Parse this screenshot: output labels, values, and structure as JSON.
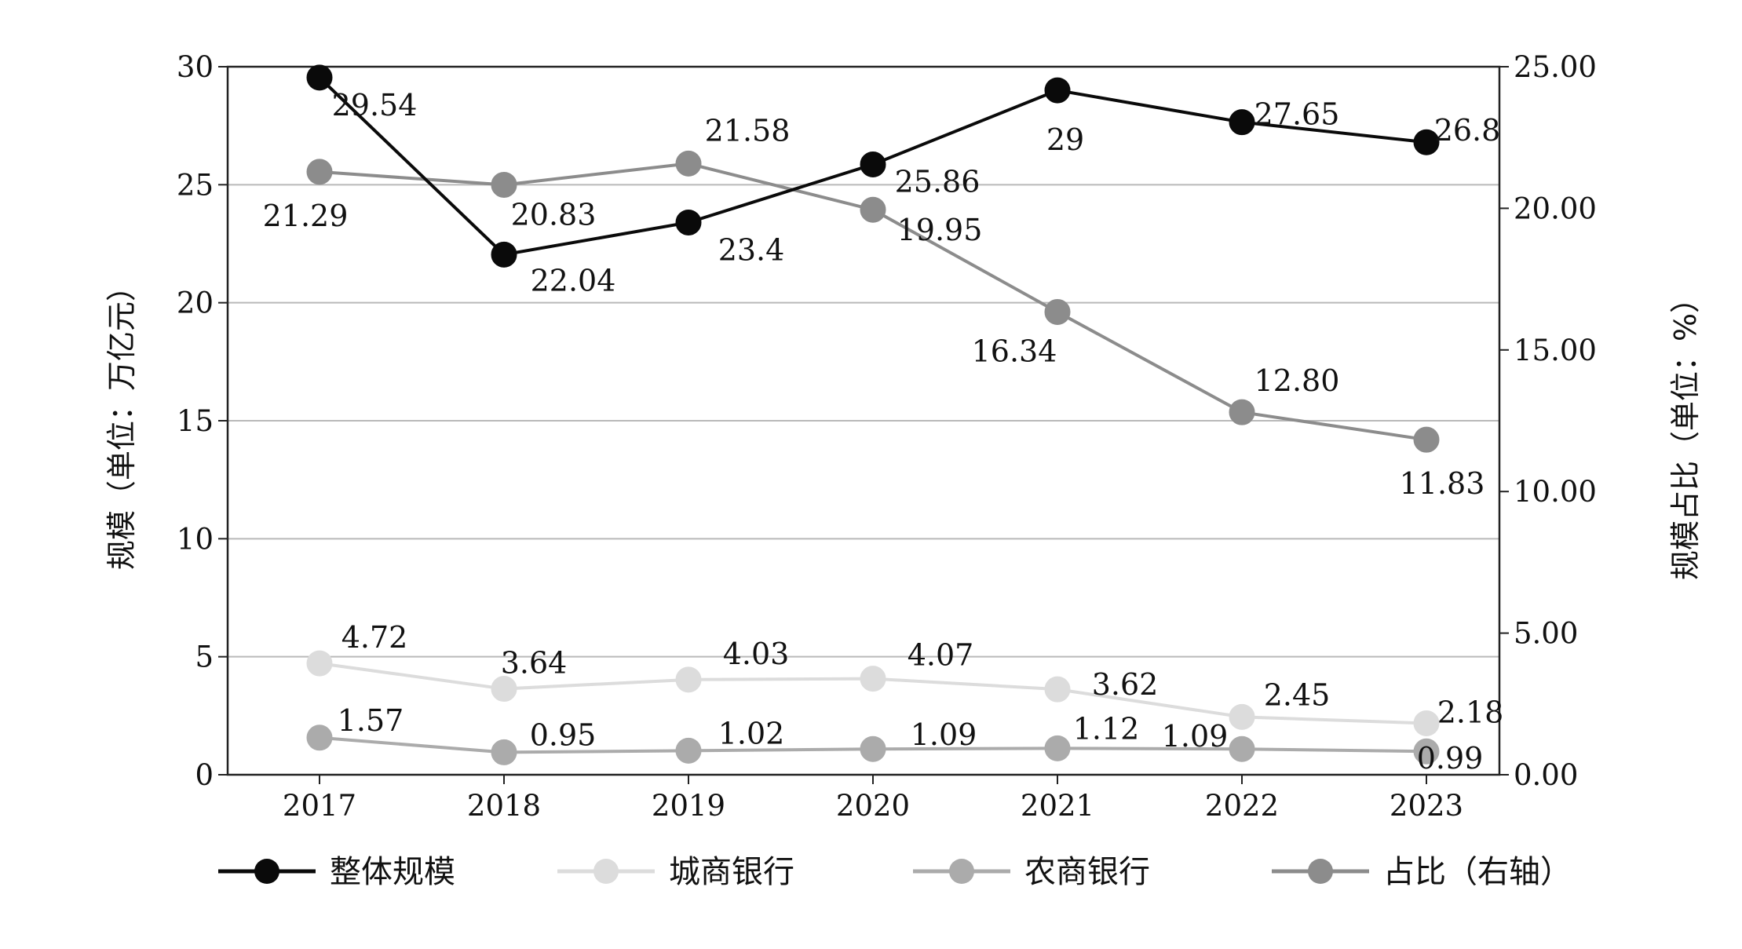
{
  "chart_data": {
    "type": "line",
    "categories": [
      "2017",
      "2018",
      "2019",
      "2020",
      "2021",
      "2022",
      "2023"
    ],
    "y_left": {
      "title": "规模（单位：万亿元）",
      "range": [
        0,
        30
      ],
      "ticks": [
        "0",
        "5",
        "10",
        "15",
        "20",
        "25",
        "30"
      ]
    },
    "y_right": {
      "title": "规模占比（单位：%）",
      "range": [
        0,
        25
      ],
      "ticks": [
        "0.00",
        "5.00",
        "10.00",
        "15.00",
        "20.00",
        "25.00"
      ]
    },
    "grid": "horizontal",
    "legend_position": "bottom",
    "series": [
      {
        "name": "整体规模",
        "axis": "left",
        "color": "#0a0a0a",
        "values": [
          29.54,
          22.04,
          23.4,
          25.86,
          29,
          27.65,
          26.8
        ],
        "labels": [
          "29.54",
          "22.04",
          "23.4",
          "25.86",
          "29",
          "27.65",
          "26.8"
        ]
      },
      {
        "name": "城商银行",
        "axis": "left",
        "color": "#dcdcdc",
        "values": [
          4.72,
          3.64,
          4.03,
          4.07,
          3.62,
          2.45,
          2.18
        ],
        "labels": [
          "4.72",
          "3.64",
          "4.03",
          "4.07",
          "3.62",
          "2.45",
          "2.18"
        ]
      },
      {
        "name": "农商银行",
        "axis": "left",
        "color": "#ababab",
        "values": [
          1.57,
          0.95,
          1.02,
          1.09,
          1.12,
          1.09,
          0.99
        ],
        "labels": [
          "1.57",
          "0.95",
          "1.02",
          "1.09",
          "1.12",
          "1.09",
          "0.99"
        ]
      },
      {
        "name": "占比（右轴）",
        "axis": "right",
        "color": "#8c8c8c",
        "values": [
          21.29,
          20.83,
          21.58,
          19.95,
          16.34,
          12.8,
          11.83
        ],
        "labels": [
          "21.29",
          "20.83",
          "21.58",
          "19.95",
          "16.34",
          "12.80",
          "11.83"
        ]
      }
    ]
  }
}
